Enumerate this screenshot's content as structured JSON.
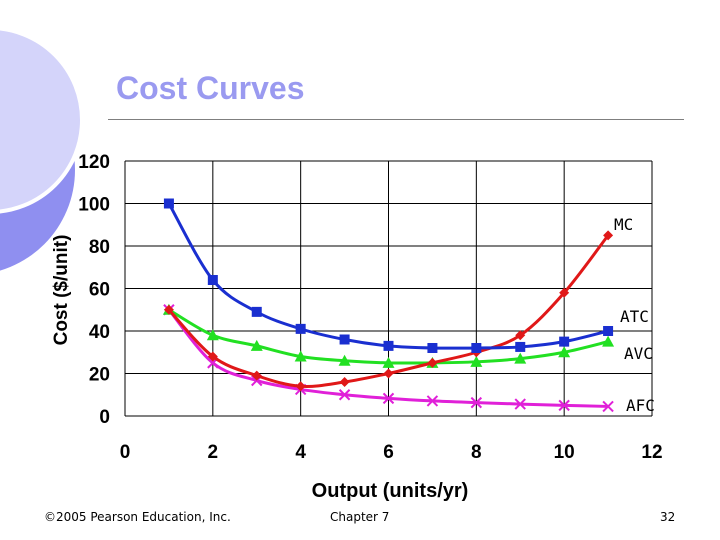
{
  "slide": {
    "title": "Cost Curves",
    "footer_left": "©2005 Pearson Education, Inc.",
    "footer_center": "Chapter 7",
    "footer_right": "32"
  },
  "colors": {
    "title": "#9a9af0",
    "decor_dark": "#8f8ff0",
    "decor_light": "#d4d4fa"
  },
  "chart_data": {
    "type": "line",
    "xlabel": "Output (units/yr)",
    "ylabel": "Cost ($/unit)",
    "xlim": [
      0,
      12
    ],
    "ylim": [
      0,
      120
    ],
    "xticks": [
      0,
      2,
      4,
      6,
      8,
      10,
      12
    ],
    "yticks": [
      0,
      20,
      40,
      60,
      80,
      100,
      120
    ],
    "grid": true,
    "series": [
      {
        "name": "ATC",
        "color": "#1a2fd0",
        "marker": "square",
        "x": [
          1,
          2,
          3,
          4,
          5,
          6,
          7,
          8,
          9,
          10,
          11
        ],
        "values": [
          100,
          64,
          49,
          41,
          36,
          33,
          32,
          32,
          32.5,
          35,
          40
        ]
      },
      {
        "name": "AVC",
        "color": "#22e022",
        "marker": "triangle",
        "x": [
          1,
          2,
          3,
          4,
          5,
          6,
          7,
          8,
          9,
          10,
          11
        ],
        "values": [
          50,
          38,
          33,
          28,
          26,
          25,
          25,
          25.5,
          27,
          30,
          35
        ]
      },
      {
        "name": "MC",
        "color": "#e01818",
        "marker": "diamond",
        "x": [
          1,
          2,
          3,
          4,
          5,
          6,
          7,
          8,
          9,
          10,
          11
        ],
        "values": [
          50,
          28,
          19,
          14,
          16,
          20,
          25,
          30,
          38,
          58,
          85
        ]
      },
      {
        "name": "AFC",
        "color": "#e020d8",
        "marker": "x",
        "x": [
          1,
          2,
          3,
          4,
          5,
          6,
          7,
          8,
          9,
          10,
          11
        ],
        "values": [
          50,
          25,
          16.7,
          12.5,
          10,
          8.3,
          7.1,
          6.3,
          5.6,
          5,
          4.5
        ]
      }
    ]
  }
}
